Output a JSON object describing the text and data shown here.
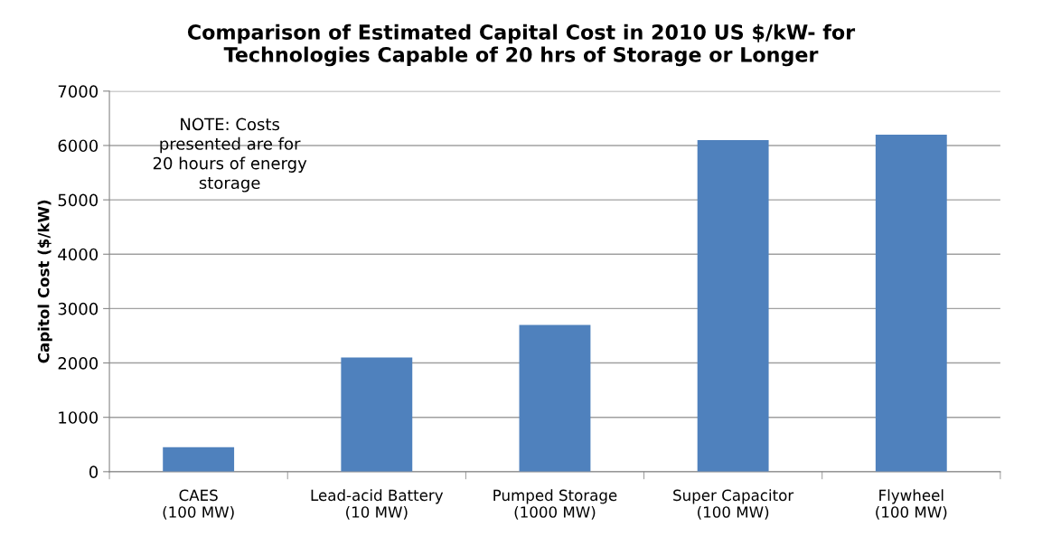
{
  "chart_data": {
    "type": "bar",
    "title": "Comparison of Estimated Capital Cost in 2010 US $/kW- for\nTechnologies Capable of 20 hrs of Storage or Longer",
    "ylabel": "Capitol Cost ($/kW)",
    "categories": [
      "CAES\n(100 MW)",
      "Lead-acid Battery\n(10 MW)",
      "Pumped Storage\n(1000 MW)",
      "Super Capacitor\n(100 MW)",
      "Flywheel\n(100 MW)"
    ],
    "values": [
      450,
      2100,
      2700,
      6100,
      6200
    ],
    "color": "#4f81bd",
    "ylim": [
      0,
      7000
    ],
    "yticks": [
      0,
      1000,
      2000,
      3000,
      4000,
      5000,
      6000,
      7000
    ],
    "grid": "y",
    "annotations": [
      "NOTE: Costs\npresented are for\n20 hours of energy\nstorage"
    ]
  }
}
